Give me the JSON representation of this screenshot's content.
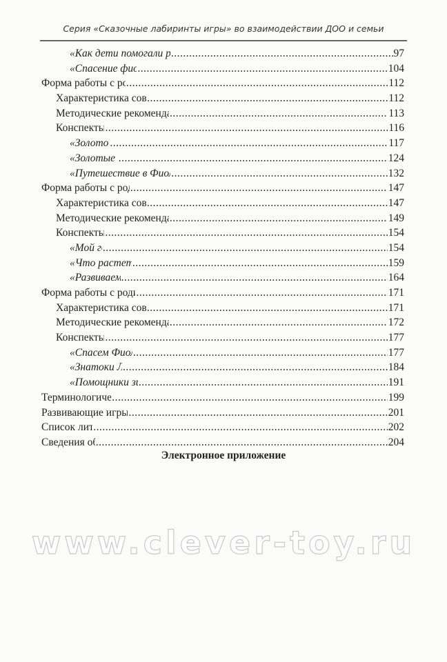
{
  "header": "Серия «Сказочные лабиринты игры» во взаимодействии ДОО и семьи",
  "toc": [
    {
      "level": 2,
      "title": "«Как дети помогали расколдовать ворона Метра»",
      "page": "97"
    },
    {
      "level": 2,
      "title": "«Спасение фиолетового леса»",
      "page": "104"
    },
    {
      "level": 0,
      "title": "Форма работы с родителями «КВН»",
      "page": "112"
    },
    {
      "level": 1,
      "title": "Характеристика совместной деятельности",
      "page": "112"
    },
    {
      "level": 1,
      "title": "Методические рекомендации по подготовке и проведению",
      "page": "113"
    },
    {
      "level": 1,
      "title": "Конспекты занятий",
      "page": "116"
    },
    {
      "level": 2,
      "title": "«Золотой плод»",
      "page": "117"
    },
    {
      "level": 2,
      "title": "«Золотые ключики»",
      "page": "124"
    },
    {
      "level": 2,
      "title": "«Путешествие в Фиолетовый лес: в поисках клада»",
      "page": "132"
    },
    {
      "level": 0,
      "title": "Форма работы с родителями «Проект»",
      "page": "147"
    },
    {
      "level": 1,
      "title": "Характеристика совместной деятельности",
      "page": "147"
    },
    {
      "level": 1,
      "title": "Методические рекомендации по подготовке и проведению",
      "page": "149"
    },
    {
      "level": 1,
      "title": "Конспекты занятий",
      "page": "154"
    },
    {
      "level": 2,
      "title": "«Мой город»",
      "page": "154"
    },
    {
      "level": 2,
      "title": "«Что растет у нас в саду»",
      "page": "159"
    },
    {
      "level": 2,
      "title": "«Развиваемся, играя»",
      "page": "164"
    },
    {
      "level": 0,
      "title": "Форма работы с родителями «Викторина»",
      "page": "171"
    },
    {
      "level": 1,
      "title": "Характеристика совместной деятельности",
      "page": "171"
    },
    {
      "level": 1,
      "title": "Методические рекомендации по подготовке и проведению",
      "page": "172"
    },
    {
      "level": 1,
      "title": "Конспекты занятий",
      "page": "177"
    },
    {
      "level": 2,
      "title": "«Спасем Фиолетовый лес!»",
      "page": "177"
    },
    {
      "level": 2,
      "title": "«Знатоки Лукоморья»",
      "page": "184"
    },
    {
      "level": 2,
      "title": "«Помощники зимующих птиц»",
      "page": "191"
    },
    {
      "level": 0,
      "title": "Терминологический словарь",
      "page": "199"
    },
    {
      "level": 0,
      "title": "Развивающие игры В.В. Воскобовича",
      "page": "201"
    },
    {
      "level": 0,
      "title": "Список литературы",
      "page": "202"
    },
    {
      "level": 0,
      "title": "Сведения об авторах",
      "page": "204"
    }
  ],
  "appendix_title": "Электронное приложение",
  "watermark": "www.clever-toy.ru"
}
